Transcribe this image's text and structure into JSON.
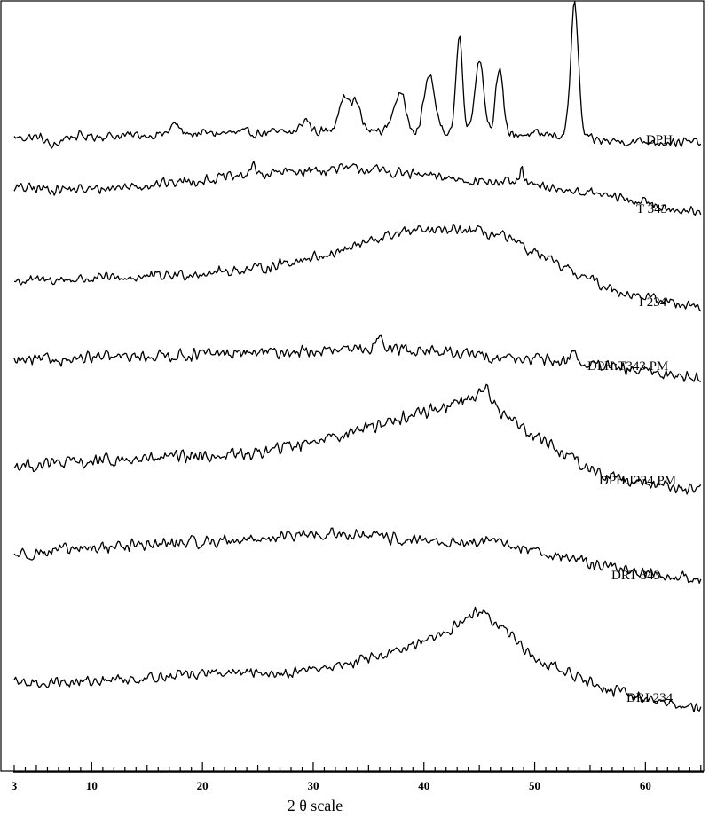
{
  "chart_data": {
    "type": "line",
    "xlabel": "2 θ scale",
    "xlim": [
      3,
      65
    ],
    "ticks": [
      {
        "value": 3,
        "label": "3"
      },
      {
        "value": 10,
        "label": "10"
      },
      {
        "value": 20,
        "label": "20"
      },
      {
        "value": 30,
        "label": "30"
      },
      {
        "value": 40,
        "label": "40"
      },
      {
        "value": 50,
        "label": "50"
      },
      {
        "value": 60,
        "label": "60"
      }
    ],
    "minor_tick_step": 1,
    "grid": false,
    "legend": "labels beside each trace on the right",
    "series": [
      {
        "name": "DPH",
        "baseline": [
          [
            3,
            0
          ],
          [
            12,
            0.2
          ],
          [
            20,
            0.5
          ],
          [
            28,
            0.6
          ],
          [
            32,
            0.8
          ],
          [
            36,
            0.8
          ],
          [
            42,
            0.7
          ],
          [
            48,
            0.4
          ],
          [
            52,
            0.3
          ],
          [
            56,
            -0.4
          ],
          [
            65,
            -0.6
          ]
        ],
        "noise": 0.7,
        "peaks": [
          [
            6.5,
            -1.2,
            0.5
          ],
          [
            17.5,
            1.2,
            0.4
          ],
          [
            29.3,
            1.5,
            0.4
          ],
          [
            32.7,
            4.0,
            0.45
          ],
          [
            33.8,
            3.5,
            0.45
          ],
          [
            37.8,
            4.5,
            0.55
          ],
          [
            40.5,
            7.0,
            0.45
          ],
          [
            43.2,
            11.5,
            0.3
          ],
          [
            45.0,
            9.0,
            0.4
          ],
          [
            46.8,
            7.5,
            0.35
          ],
          [
            53.6,
            16.0,
            0.35
          ]
        ]
      },
      {
        "name": "T 343",
        "baseline": [
          [
            3,
            0
          ],
          [
            10,
            -0.2
          ],
          [
            20,
            1.0
          ],
          [
            28,
            2.0
          ],
          [
            34,
            2.4
          ],
          [
            40,
            1.5
          ],
          [
            50,
            0.3
          ],
          [
            56,
            -0.8
          ],
          [
            62,
            -2.3
          ],
          [
            65,
            -3.2
          ]
        ],
        "noise": 0.8,
        "peaks": [
          [
            24.5,
            1.0,
            0.3
          ],
          [
            48.8,
            1.8,
            0.2
          ]
        ]
      },
      {
        "name": "I 234",
        "baseline": [
          [
            3,
            0
          ],
          [
            15,
            0.5
          ],
          [
            25,
            1.5
          ],
          [
            32,
            3.5
          ],
          [
            38,
            6.0
          ],
          [
            44,
            6.2
          ],
          [
            47,
            5.5
          ],
          [
            52,
            2.0
          ],
          [
            57,
            -1.0
          ],
          [
            62,
            -2.5
          ],
          [
            65,
            -3.0
          ]
        ],
        "noise": 0.8,
        "peaks": []
      },
      {
        "name": "DPH:T343 PM",
        "baseline": [
          [
            3,
            0
          ],
          [
            15,
            0.6
          ],
          [
            25,
            1.0
          ],
          [
            32,
            1.2
          ],
          [
            38,
            1.5
          ],
          [
            44,
            0.8
          ],
          [
            50,
            0.2
          ],
          [
            54,
            -0.3
          ],
          [
            58,
            -1.0
          ],
          [
            65,
            -2.0
          ]
        ],
        "noise": 0.9,
        "peaks": [
          [
            36,
            2.0,
            0.35
          ],
          [
            53.5,
            1.8,
            0.25
          ]
        ]
      },
      {
        "name": "DPH:I234 PM",
        "baseline": [
          [
            3,
            0
          ],
          [
            15,
            0.8
          ],
          [
            25,
            1.5
          ],
          [
            33,
            4.0
          ],
          [
            40,
            6.5
          ],
          [
            45,
            8.5
          ],
          [
            48,
            5.5
          ],
          [
            52,
            2.0
          ],
          [
            56,
            -1.0
          ],
          [
            62,
            -2.5
          ],
          [
            65,
            -3.0
          ]
        ],
        "noise": 1.0,
        "peaks": [
          [
            45.5,
            1.5,
            0.4
          ]
        ]
      },
      {
        "name": "DRT 343",
        "baseline": [
          [
            3,
            0
          ],
          [
            12,
            1.0
          ],
          [
            20,
            1.5
          ],
          [
            28,
            2.2
          ],
          [
            33,
            2.5
          ],
          [
            40,
            1.5
          ],
          [
            46,
            1.5
          ],
          [
            50,
            0.5
          ],
          [
            55,
            -1.0
          ],
          [
            60,
            -2.2
          ],
          [
            65,
            -3.0
          ]
        ],
        "noise": 0.9,
        "peaks": []
      },
      {
        "name": "DRI 234",
        "baseline": [
          [
            3,
            0
          ],
          [
            10,
            0.2
          ],
          [
            20,
            1.2
          ],
          [
            27,
            1.2
          ],
          [
            32,
            2.0
          ],
          [
            38,
            4.0
          ],
          [
            42,
            6.0
          ],
          [
            45,
            9.0
          ],
          [
            47,
            7.0
          ],
          [
            50,
            3.0
          ],
          [
            55,
            0.0
          ],
          [
            60,
            -2.0
          ],
          [
            65,
            -3.0
          ]
        ],
        "noise": 0.8,
        "peaks": []
      }
    ]
  }
}
